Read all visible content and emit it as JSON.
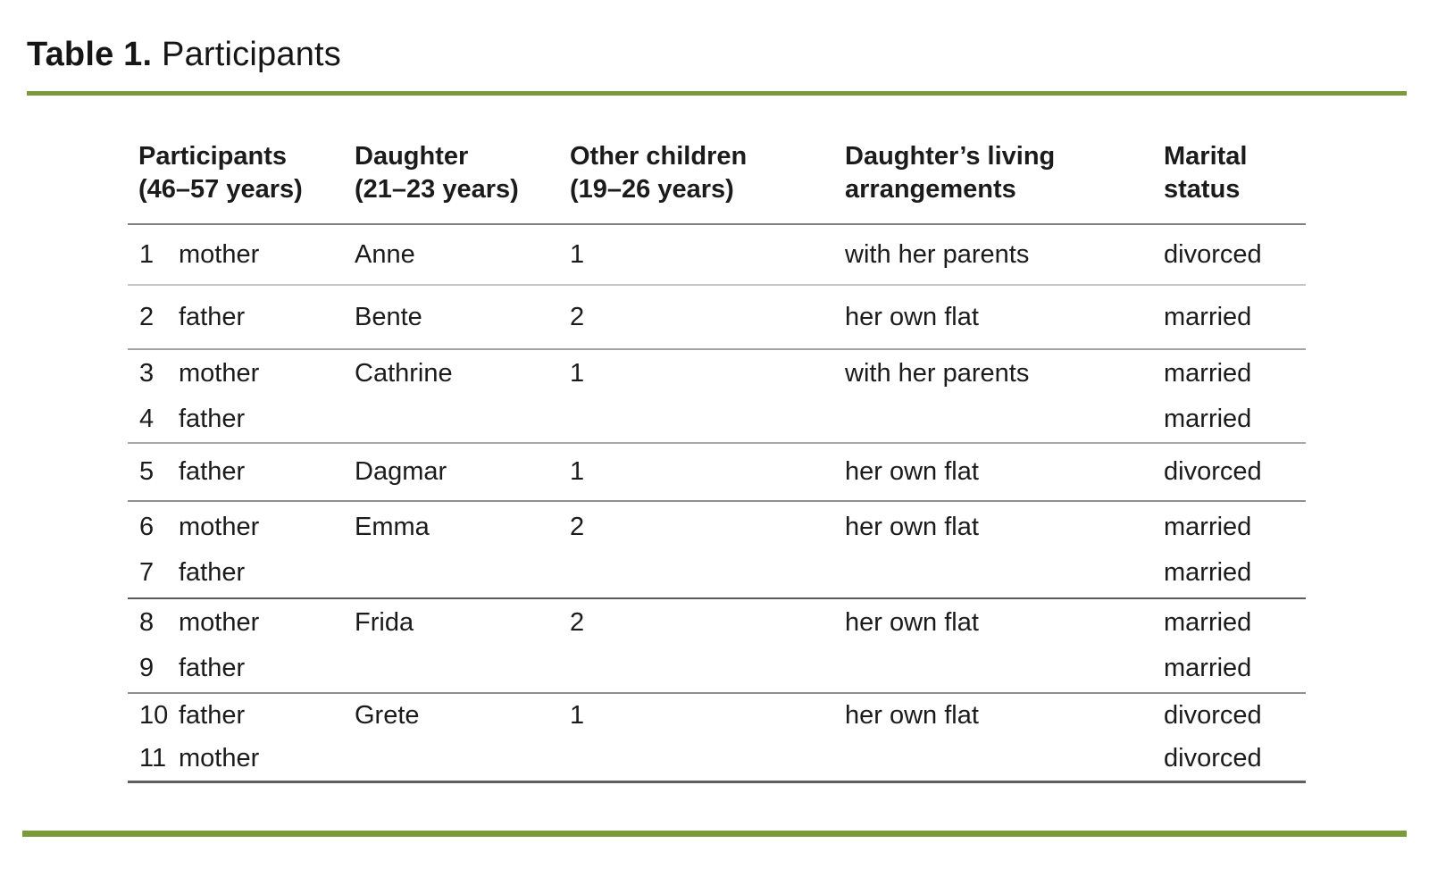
{
  "page": {
    "title_bold": "Table 1.",
    "title_rest": "Participants"
  },
  "colors": {
    "accent_green": "#7a9a3c",
    "header_rule": "#7f7f7f",
    "row_divider_light": "#c6c6c6",
    "row_divider_dark": "#5a5a5a",
    "text": "#1b1b1b"
  },
  "table": {
    "headers": [
      {
        "line1": "Participants",
        "line2": "(46–57 years)"
      },
      {
        "line1": "Daughter",
        "line2": "(21–23 years)"
      },
      {
        "line1": "Other children",
        "line2": "(19–26 years)"
      },
      {
        "line1": "Daughter’s living",
        "line2": "arrangements"
      },
      {
        "line1": "Marital",
        "line2": "status"
      }
    ],
    "groups": [
      {
        "rows": [
          {
            "num": "1",
            "role": "mother",
            "daughter": "Anne",
            "children": "1",
            "living": "with her parents",
            "marital": "divorced"
          }
        ]
      },
      {
        "rows": [
          {
            "num": "2",
            "role": "father",
            "daughter": "Bente",
            "children": "2",
            "living": "her own flat",
            "marital": "married"
          }
        ]
      },
      {
        "rows": [
          {
            "num": "3",
            "role": "mother",
            "daughter": "Cathrine",
            "children": "1",
            "living": "with her parents",
            "marital": "married"
          },
          {
            "num": "4",
            "role": "father",
            "daughter": "",
            "children": "",
            "living": "",
            "marital": "married"
          }
        ]
      },
      {
        "rows": [
          {
            "num": "5",
            "role": "father",
            "daughter": "Dagmar",
            "children": "1",
            "living": "her own flat",
            "marital": "divorced"
          }
        ]
      },
      {
        "rows": [
          {
            "num": "6",
            "role": "mother",
            "daughter": "Emma",
            "children": "2",
            "living": "her own flat",
            "marital": "married"
          },
          {
            "num": "7",
            "role": "father",
            "daughter": "",
            "children": "",
            "living": "",
            "marital": "married"
          }
        ]
      },
      {
        "rows": [
          {
            "num": "8",
            "role": "mother",
            "daughter": "Frida",
            "children": "2",
            "living": "her own flat",
            "marital": "married"
          },
          {
            "num": "9",
            "role": "father",
            "daughter": "",
            "children": "",
            "living": "",
            "marital": "married"
          }
        ]
      },
      {
        "rows": [
          {
            "num": "10",
            "role": "father",
            "daughter": "Grete",
            "children": "1",
            "living": "her own flat",
            "marital": "divorced"
          },
          {
            "num": "11",
            "role": "mother",
            "daughter": "",
            "children": "",
            "living": "",
            "marital": "divorced"
          }
        ]
      }
    ]
  }
}
